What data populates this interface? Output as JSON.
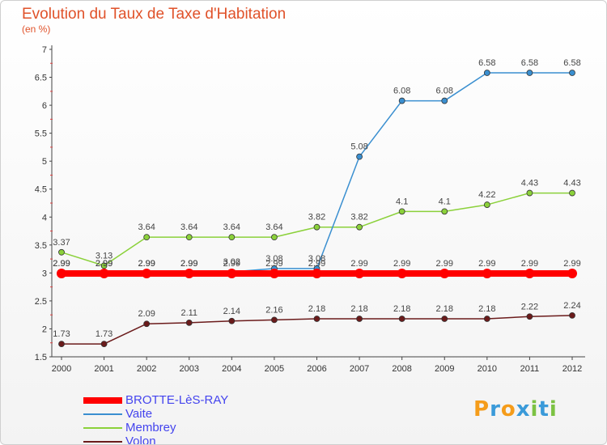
{
  "title": "Evolution du Taux de Taxe d'Habitation",
  "subtitle": "(en %)",
  "logo": {
    "text": "Proxiti",
    "letters": [
      "P",
      "r",
      "o",
      "x",
      "i",
      "t",
      "i"
    ],
    "colors": [
      "#f59c1a",
      "#3a9ad9",
      "#f59c1a",
      "#3a9ad9",
      "#7cc243",
      "#3a9ad9",
      "#7cc243"
    ]
  },
  "chart_data": {
    "type": "line",
    "x": [
      "2000",
      "2001",
      "2002",
      "2003",
      "2004",
      "2005",
      "2006",
      "2007",
      "2008",
      "2009",
      "2010",
      "2011",
      "2012"
    ],
    "ylim": [
      1.5,
      7
    ],
    "yticks": [
      "1.5",
      "2",
      "2.5",
      "3",
      "3.5",
      "4",
      "4.5",
      "5",
      "5.5",
      "6",
      "6.5",
      "7"
    ],
    "grid": false,
    "legend_position": "bottom-left",
    "series": [
      {
        "name": "BROTTE-LèS-RAY",
        "color": "#ff0000",
        "thick": true,
        "values": [
          2.99,
          2.99,
          2.99,
          2.99,
          2.99,
          2.99,
          2.99,
          2.99,
          2.99,
          2.99,
          2.99,
          2.99,
          2.99
        ],
        "labels": [
          "2.99",
          "2.99",
          "2.99",
          "2.99",
          "2.99",
          "2.99",
          "2.99",
          "2.99",
          "2.99",
          "2.99",
          "2.99",
          "2.99",
          "2.99"
        ]
      },
      {
        "name": "Vaite",
        "color": "#3a8fd0",
        "values": [
          2.99,
          2.99,
          2.99,
          2.99,
          3.02,
          3.08,
          3.08,
          5.08,
          6.08,
          6.08,
          6.58,
          6.58,
          6.58
        ],
        "labels": [
          "2.99",
          "2.99",
          "2.99",
          "2.99",
          "3.02",
          "3.08",
          "3.08",
          "5.08",
          "6.08",
          "6.08",
          "6.58",
          "6.58",
          "6.58"
        ]
      },
      {
        "name": "Membrey",
        "color": "#8bd13a",
        "values": [
          3.37,
          3.13,
          3.64,
          3.64,
          3.64,
          3.64,
          3.82,
          3.82,
          4.1,
          4.1,
          4.22,
          4.43,
          4.43
        ],
        "labels": [
          "3.37",
          "3.13",
          "3.64",
          "3.64",
          "3.64",
          "3.64",
          "3.82",
          "3.82",
          "4.1",
          "4.1",
          "4.22",
          "4.43",
          "4.43"
        ]
      },
      {
        "name": "Volon",
        "color": "#6b1b1b",
        "values": [
          1.73,
          1.73,
          2.09,
          2.11,
          2.14,
          2.16,
          2.18,
          2.18,
          2.18,
          2.18,
          2.18,
          2.22,
          2.24
        ],
        "labels": [
          "1.73",
          "1.73",
          "2.09",
          "2.11",
          "2.14",
          "2.16",
          "2.18",
          "2.18",
          "2.18",
          "2.18",
          "2.18",
          "2.22",
          "2.24"
        ]
      }
    ]
  }
}
